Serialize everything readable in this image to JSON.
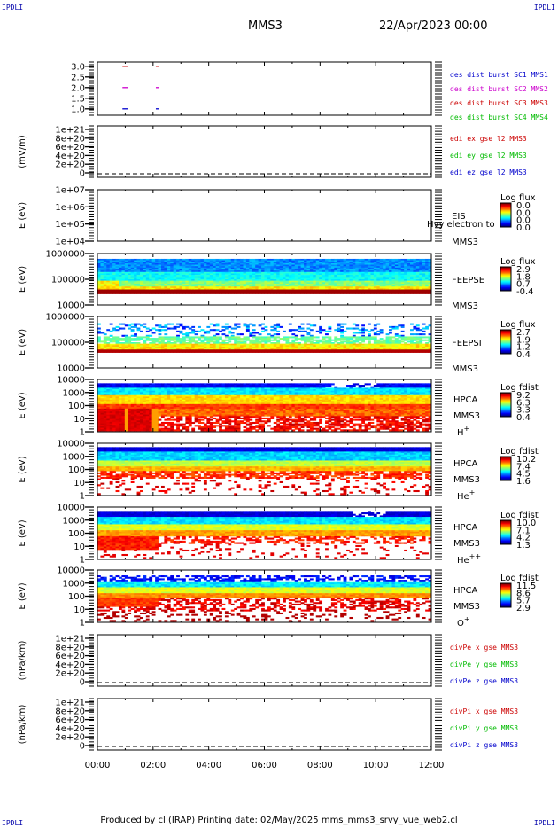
{
  "corners": {
    "tl": "IPDLI",
    "tr": "IPDLI",
    "bl": "IPDLI",
    "br": "IPDLI"
  },
  "header": {
    "mission": "MMS3",
    "datetime": "22/Apr/2023 00:00"
  },
  "footer": {
    "text": "Produced by cl (IRAP)    Printing date: 02/May/2025    mms_mms3_srvy_vue_web2.cl"
  },
  "chart_data": [
    {
      "type": "scatter",
      "id": "burst",
      "yticks": [
        "3.0",
        "2.5",
        "2.0",
        "1.5",
        "1.0"
      ],
      "ylim": [
        0.7,
        3.2
      ],
      "xlim": [
        0,
        12
      ],
      "series": [
        {
          "name": "des dist burst SC1 MMS1",
          "color": "#0000cc",
          "segments": [
            [
              0.9,
              1.1,
              1.0
            ],
            [
              2.1,
              2.2,
              1.0
            ]
          ]
        },
        {
          "name": "des dist burst SC2 MMS2",
          "color": "#cc00cc",
          "segments": [
            [
              0.9,
              1.1,
              2.0
            ],
            [
              2.1,
              2.2,
              2.0
            ]
          ]
        },
        {
          "name": "des dist burst SC3 MMS3",
          "color": "#cc0000",
          "segments": [
            [
              0.9,
              1.1,
              3.0
            ],
            [
              2.1,
              2.2,
              3.0
            ]
          ]
        },
        {
          "name": "des dist burst SC4 MMS4",
          "color": "#00bb00",
          "segments": []
        }
      ]
    },
    {
      "type": "line",
      "id": "edi",
      "ylabel": "(mV/m)",
      "yticks": [
        "1e+21",
        "8e+20",
        "6e+20",
        "4e+20",
        "2e+20",
        "0"
      ],
      "ylim": [
        -5e+19,
        1.1e+21
      ],
      "series": [
        {
          "name": "edi ex gse l2 MMS3",
          "color": "#cc0000"
        },
        {
          "name": "edi ey gse l2 MMS3",
          "color": "#00bb00"
        },
        {
          "name": "edi ez gse l2 MMS3",
          "color": "#0000cc"
        }
      ],
      "zero_line": true
    },
    {
      "type": "heatmap",
      "id": "eis",
      "ylabel": "E (eV)",
      "yticks": [
        "1e+07",
        "1e+06",
        "1e+05",
        "1e+04"
      ],
      "right_labels": [
        "EIS",
        "MMS3"
      ],
      "overlay_text": "Hvy electron to",
      "colorbar": {
        "title": "Log flux",
        "ticks": [
          "0.0",
          "0.0",
          "0.0",
          "0.0"
        ]
      },
      "empty": true
    },
    {
      "type": "heatmap",
      "id": "feepse",
      "ylabel": "E (eV)",
      "yticks": [
        "1000000",
        "100000",
        "10000"
      ],
      "right_labels": [
        "FEEPSE",
        "MMS3"
      ],
      "colorbar": {
        "title": "Log flux",
        "ticks": [
          "2.9",
          "1.8",
          "0.7",
          "-0.4"
        ]
      }
    },
    {
      "type": "heatmap",
      "id": "feepsi",
      "ylabel": "E (eV)",
      "yticks": [
        "1000000",
        "100000",
        "10000"
      ],
      "right_labels": [
        "FEEPSI",
        "MMS3"
      ],
      "colorbar": {
        "title": "Log flux",
        "ticks": [
          "2.7",
          "1.9",
          "1.2",
          "0.4"
        ]
      }
    },
    {
      "type": "heatmap",
      "id": "hpca_h",
      "ylabel": "E (eV)",
      "yticks": [
        "10000",
        "1000",
        "100",
        "10",
        "1"
      ],
      "right_labels": [
        "HPCA",
        "MMS3",
        "H+"
      ],
      "colorbar": {
        "title": "Log fdist",
        "ticks": [
          "9.2",
          "6.3",
          "3.3",
          "0.4"
        ]
      }
    },
    {
      "type": "heatmap",
      "id": "hpca_he",
      "ylabel": "E (eV)",
      "yticks": [
        "10000",
        "1000",
        "100",
        "10",
        "1"
      ],
      "right_labels": [
        "HPCA",
        "MMS3",
        "He+"
      ],
      "colorbar": {
        "title": "Log fdist",
        "ticks": [
          "10.2",
          "7.4",
          "4.5",
          "1.6"
        ]
      }
    },
    {
      "type": "heatmap",
      "id": "hpca_hepp",
      "ylabel": "E (eV)",
      "yticks": [
        "10000",
        "1000",
        "100",
        "10",
        "1"
      ],
      "right_labels": [
        "HPCA",
        "MMS3",
        "He++"
      ],
      "colorbar": {
        "title": "Log fdist",
        "ticks": [
          "10.0",
          "7.1",
          "4.2",
          "1.3"
        ]
      }
    },
    {
      "type": "heatmap",
      "id": "hpca_o",
      "ylabel": "E (eV)",
      "yticks": [
        "10000",
        "1000",
        "100",
        "10",
        "1"
      ],
      "right_labels": [
        "HPCA",
        "MMS3",
        "O+"
      ],
      "colorbar": {
        "title": "Log fdist",
        "ticks": [
          "11.5",
          "8.6",
          "5.7",
          "2.9"
        ]
      }
    },
    {
      "type": "line",
      "id": "divpe",
      "ylabel": "(nPa/km)",
      "yticks": [
        "1e+21",
        "8e+20",
        "6e+20",
        "4e+20",
        "2e+20",
        "0"
      ],
      "series": [
        {
          "name": "divPe x gse MMS3",
          "color": "#cc0000"
        },
        {
          "name": "divPe y gse MMS3",
          "color": "#00bb00"
        },
        {
          "name": "divPe z gse MMS3",
          "color": "#0000cc"
        }
      ],
      "zero_line": true
    },
    {
      "type": "line",
      "id": "divpi",
      "ylabel": "(nPa/km)",
      "yticks": [
        "1e+21",
        "8e+20",
        "6e+20",
        "4e+20",
        "2e+20",
        "0"
      ],
      "series": [
        {
          "name": "divPi x gse MMS3",
          "color": "#cc0000"
        },
        {
          "name": "divPi y gse MMS3",
          "color": "#00bb00"
        },
        {
          "name": "divPi z gse MMS3",
          "color": "#0000cc"
        }
      ],
      "zero_line": true
    }
  ],
  "xaxis": {
    "ticks": [
      "00:00",
      "02:00",
      "04:00",
      "06:00",
      "08:00",
      "10:00",
      "12:00"
    ],
    "xlim": [
      0,
      12
    ]
  }
}
